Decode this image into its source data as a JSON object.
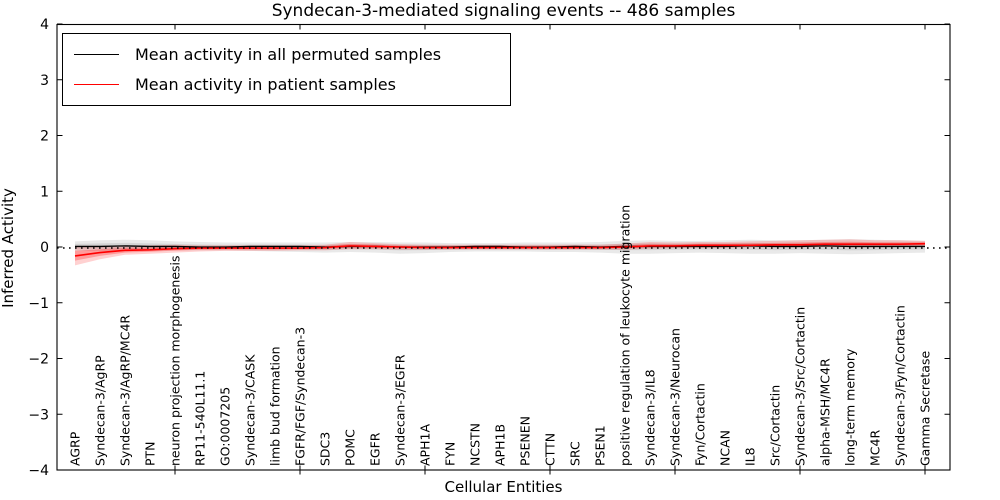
{
  "chart_data": {
    "type": "line",
    "title": "Syndecan-3-mediated signaling events -- 486 samples",
    "xlabel": "Cellular Entities",
    "ylabel": "Inferred Activity",
    "ylim": [
      -4,
      4
    ],
    "yticks": [
      -4,
      -3,
      -2,
      -1,
      0,
      1,
      2,
      3,
      4
    ],
    "x_major_tick_positions": [
      5,
      10,
      15,
      20,
      25,
      30,
      35
    ],
    "grid": false,
    "legend_position": "upper left",
    "zero_line": {
      "y": 0,
      "style": "dotted",
      "color": "#000000"
    },
    "categories": [
      "AGRP",
      "Syndecan-3/AgRP",
      "Syndecan-3/AgRP/MC4R",
      "PTN",
      "neuron projection morphogenesis",
      "RP11-540L11.1",
      "GO:0007205",
      "Syndecan-3/CASK",
      "limb bud formation",
      "FGFR/FGF/Syndecan-3",
      "SDC3",
      "POMC",
      "EGFR",
      "Syndecan-3/EGFR",
      "APH1A",
      "FYN",
      "NCSTN",
      "APH1B",
      "PSENEN",
      "CTTN",
      "SRC",
      "PSEN1",
      "positive regulation of leukocyte migration",
      "Syndecan-3/IL8",
      "Syndecan-3/Neurocan",
      "Fyn/Cortactin",
      "NCAN",
      "IL8",
      "Src/Cortactin",
      "Syndecan-3/Src/Cortactin",
      "alpha-MSH/MC4R",
      "long-term memory",
      "MC4R",
      "Syndecan-3/Fyn/Cortactin",
      "Gamma Secretase"
    ],
    "series": [
      {
        "name": "Mean activity in all permuted samples",
        "color": "#000000",
        "band_color": "#999999",
        "values": [
          0.01,
          0.01,
          0.02,
          0.01,
          0.01,
          0.0,
          0.0,
          0.01,
          0.01,
          0.01,
          0.0,
          0.01,
          0.01,
          0.0,
          0.0,
          0.0,
          0.01,
          0.01,
          0.0,
          0.0,
          0.01,
          0.0,
          0.01,
          0.01,
          0.01,
          0.01,
          0.01,
          0.02,
          0.01,
          0.01,
          0.02,
          0.01,
          0.01,
          0.01,
          0.01
        ],
        "band_hi": [
          0.1,
          0.12,
          0.13,
          0.12,
          0.1,
          0.09,
          0.08,
          0.08,
          0.08,
          0.08,
          0.08,
          0.09,
          0.09,
          0.08,
          0.08,
          0.07,
          0.07,
          0.07,
          0.08,
          0.08,
          0.08,
          0.09,
          0.11,
          0.12,
          0.11,
          0.11,
          0.12,
          0.13,
          0.12,
          0.12,
          0.13,
          0.14,
          0.13,
          0.12,
          0.11
        ],
        "band_lo": [
          -0.07,
          -0.07,
          -0.08,
          -0.07,
          -0.06,
          -0.06,
          -0.06,
          -0.07,
          -0.08,
          -0.09,
          -0.1,
          -0.09,
          -0.1,
          -0.12,
          -0.11,
          -0.09,
          -0.08,
          -0.08,
          -0.08,
          -0.09,
          -0.09,
          -0.1,
          -0.12,
          -0.12,
          -0.11,
          -0.1,
          -0.11,
          -0.12,
          -0.12,
          -0.11,
          -0.12,
          -0.13,
          -0.12,
          -0.11,
          -0.1
        ]
      },
      {
        "name": "Mean activity in patient samples",
        "color": "#ff0000",
        "band_color": "#ff0000",
        "values": [
          -0.16,
          -0.1,
          -0.06,
          -0.05,
          -0.03,
          -0.02,
          -0.02,
          -0.02,
          -0.02,
          -0.02,
          -0.01,
          0.02,
          0.01,
          0.0,
          -0.01,
          -0.01,
          -0.01,
          -0.01,
          -0.01,
          -0.01,
          -0.01,
          -0.01,
          0.0,
          0.02,
          0.02,
          0.03,
          0.03,
          0.03,
          0.04,
          0.04,
          0.05,
          0.05,
          0.05,
          0.05,
          0.06
        ],
        "band_hi": [
          0.02,
          0.02,
          0.03,
          0.03,
          0.04,
          0.03,
          0.03,
          0.03,
          0.03,
          0.03,
          0.04,
          0.09,
          0.07,
          0.05,
          0.04,
          0.04,
          0.04,
          0.04,
          0.04,
          0.04,
          0.04,
          0.04,
          0.06,
          0.09,
          0.08,
          0.09,
          0.09,
          0.1,
          0.11,
          0.12,
          0.13,
          0.14,
          0.12,
          0.12,
          0.11
        ],
        "band_lo": [
          -0.33,
          -0.22,
          -0.14,
          -0.12,
          -0.1,
          -0.08,
          -0.07,
          -0.07,
          -0.07,
          -0.06,
          -0.06,
          -0.04,
          -0.04,
          -0.05,
          -0.05,
          -0.05,
          -0.05,
          -0.05,
          -0.05,
          -0.05,
          -0.05,
          -0.05,
          -0.05,
          -0.03,
          -0.02,
          -0.02,
          -0.02,
          -0.01,
          -0.01,
          -0.01,
          0.0,
          -0.01,
          -0.01,
          0.0,
          0.01
        ]
      }
    ]
  }
}
